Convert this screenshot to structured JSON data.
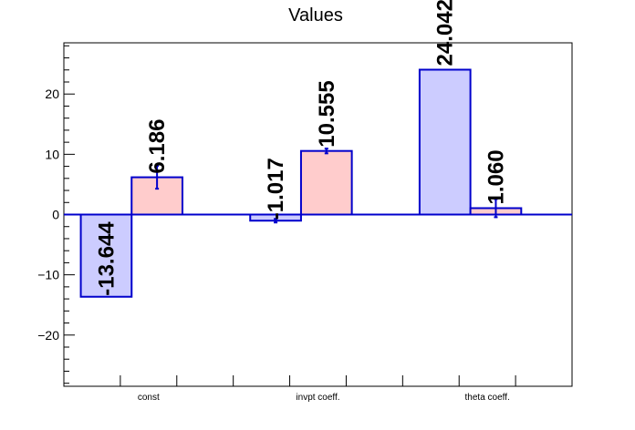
{
  "chart_data": {
    "type": "bar",
    "title": "Values",
    "xlabel": "",
    "ylabel": "",
    "categories": [
      "const",
      "invpt coeff.",
      "theta coeff."
    ],
    "series": [
      {
        "values": [
          -13.644,
          -1.017,
          24.042
        ],
        "errors": [
          0,
          0.3,
          0
        ],
        "fill": "#ccccff",
        "stroke": "#0000cc"
      },
      {
        "values": [
          6.186,
          10.555,
          1.06
        ],
        "errors": [
          1.9,
          0.4,
          1.5
        ],
        "fill": "#ffcccc",
        "stroke": "#0000cc"
      }
    ],
    "value_labels": [
      [
        "-13.644",
        "-1.017",
        "24.042"
      ],
      [
        "6.186",
        "10.555",
        "1.060"
      ]
    ],
    "ylim": [
      -28.5,
      28.5
    ],
    "yticks": [
      -20,
      -10,
      0,
      10,
      20
    ],
    "ytick_labels": [
      "−20",
      "−10",
      "0",
      "10",
      "20"
    ],
    "grid": false,
    "legend": "none"
  }
}
